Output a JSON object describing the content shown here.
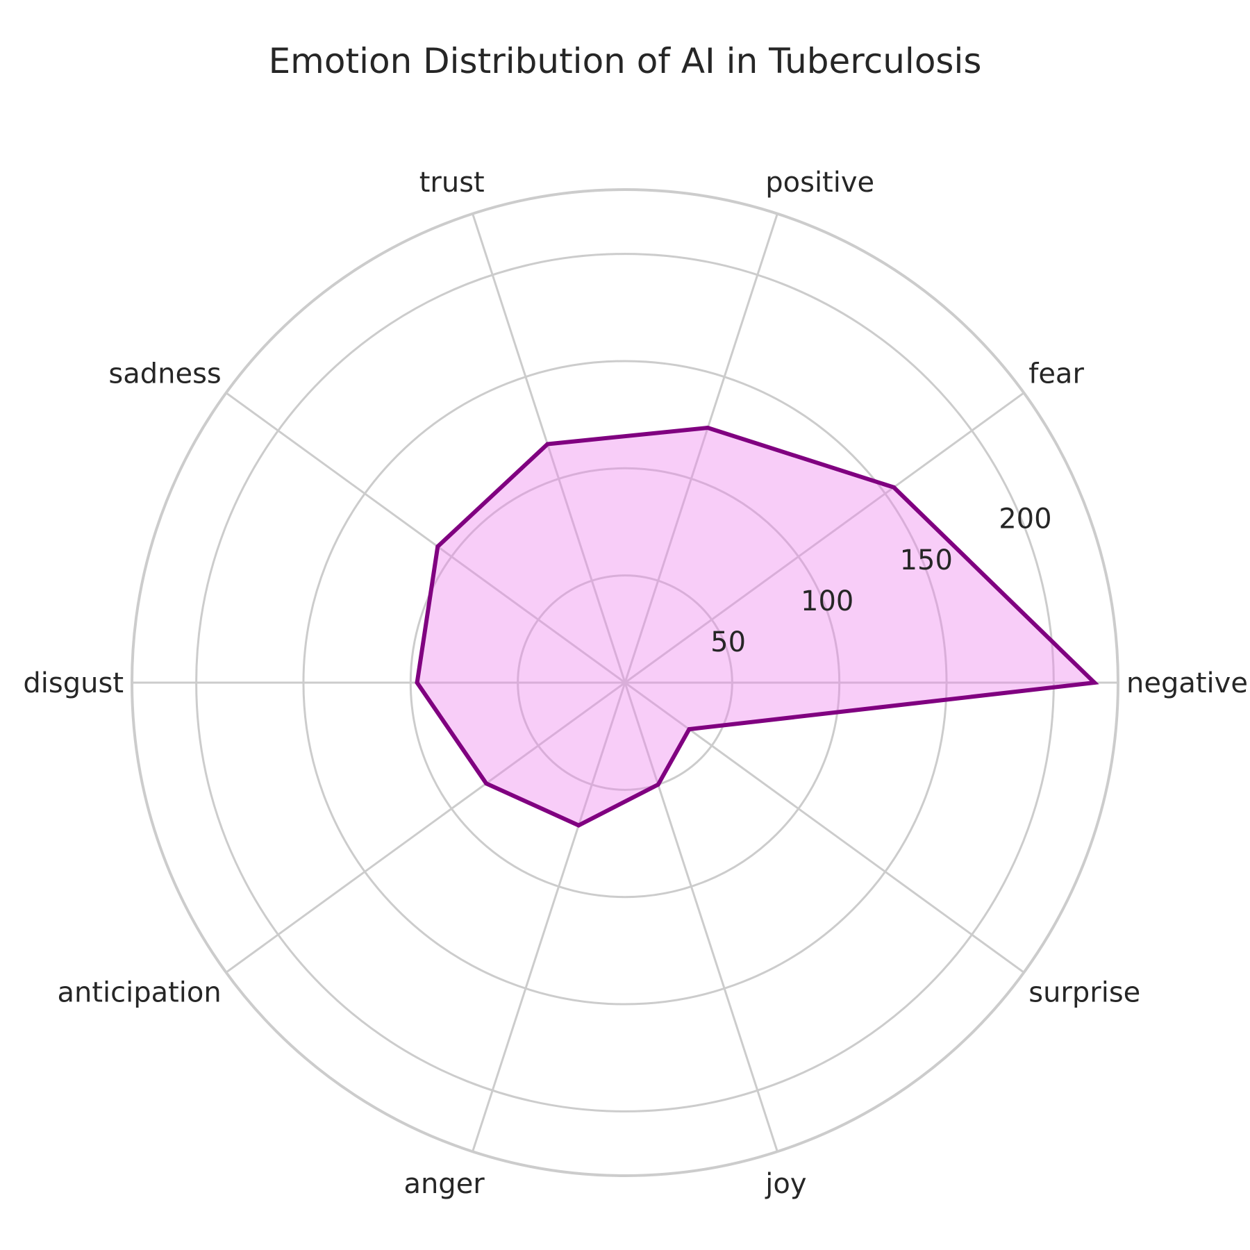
{
  "chart_data": {
    "type": "radar",
    "title": "Emotion Distribution of AI in Tuberculosis",
    "categories": [
      "negative",
      "fear",
      "positive",
      "trust",
      "sadness",
      "disgust",
      "anticipation",
      "anger",
      "joy",
      "surprise"
    ],
    "values": [
      219,
      155,
      125,
      117,
      108,
      97,
      80,
      70,
      50,
      37
    ],
    "rlim": [
      0,
      230
    ],
    "rticks": [
      50,
      100,
      150,
      200
    ],
    "rtick_labels": [
      "50",
      "100",
      "150",
      "200"
    ],
    "grid": true,
    "colors": {
      "line": "#800080",
      "fill": "#ee82ee",
      "grid": "#cccccc",
      "text": "#262626"
    }
  }
}
